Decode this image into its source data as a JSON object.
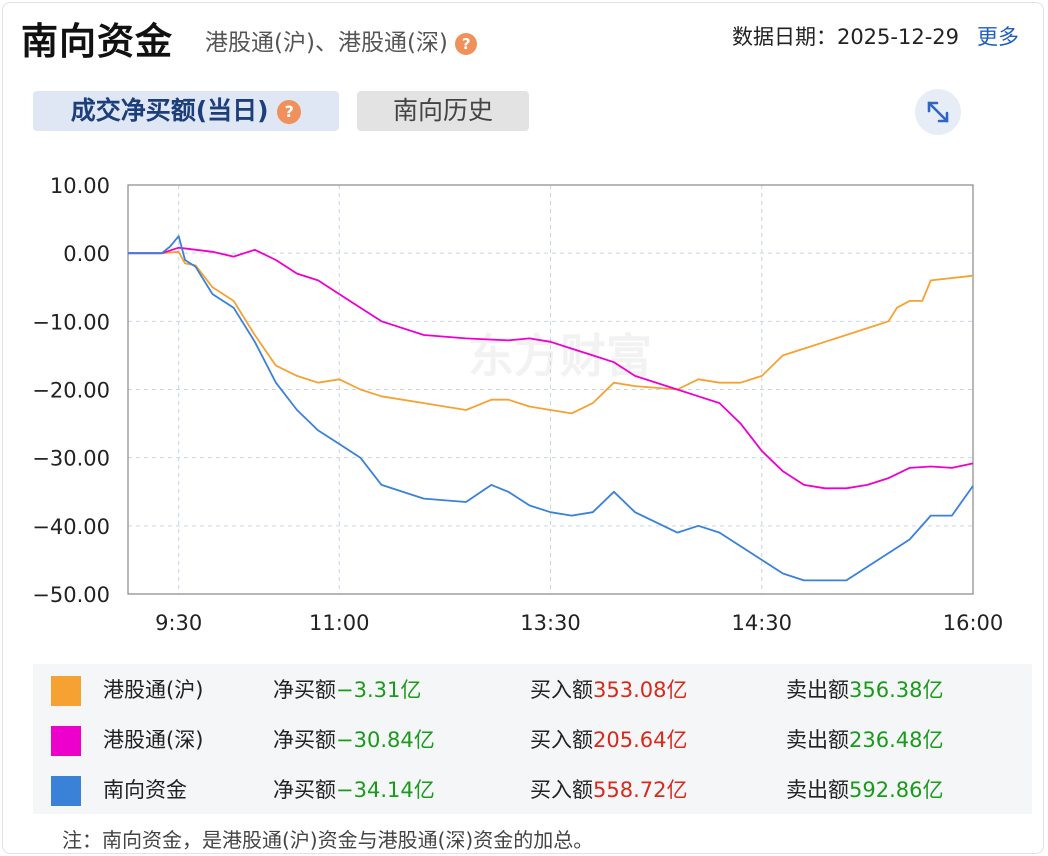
{
  "header": {
    "title": "南向资金",
    "subtitle": "港股通(沪)、港股通(深)",
    "date_label": "数据日期：2025-12-29",
    "more_label": "更多"
  },
  "tabs": [
    {
      "label": "成交净买额(当日)",
      "active": true
    },
    {
      "label": "南向历史",
      "active": false
    }
  ],
  "icons": {
    "help": "question-icon",
    "expand": "expand-icon"
  },
  "watermark": "东方财富",
  "chart_data": {
    "type": "line",
    "ylim": [
      -50,
      10
    ],
    "yticks": [
      "10.00",
      "0.00",
      "−10.00",
      "−20.00",
      "−30.00",
      "−40.00",
      "−50.00"
    ],
    "ytick_values": [
      10,
      0,
      -10,
      -20,
      -30,
      -40,
      -50
    ],
    "xticks": [
      {
        "label": "9:30",
        "x": 0.12
      },
      {
        "label": "11:00",
        "x": 0.5
      },
      {
        "label": "13:30",
        "x": 1.0
      },
      {
        "label": "14:30",
        "x": 1.5
      },
      {
        "label": "16:00",
        "x": 2.0
      }
    ],
    "grid": true,
    "series": [
      {
        "name": "港股通(沪)",
        "color": "#f5a233",
        "points": [
          [
            0,
            0
          ],
          [
            0.08,
            0
          ],
          [
            0.12,
            0.2
          ],
          [
            0.135,
            -1.5
          ],
          [
            0.16,
            -1.8
          ],
          [
            0.2,
            -5
          ],
          [
            0.25,
            -7
          ],
          [
            0.3,
            -12
          ],
          [
            0.35,
            -16.5
          ],
          [
            0.4,
            -18
          ],
          [
            0.45,
            -19
          ],
          [
            0.5,
            -18.5
          ],
          [
            0.55,
            -20
          ],
          [
            0.6,
            -21
          ],
          [
            0.7,
            -22
          ],
          [
            0.8,
            -23
          ],
          [
            0.86,
            -21.5
          ],
          [
            0.9,
            -21.5
          ],
          [
            0.95,
            -22.5
          ],
          [
            1.0,
            -23
          ],
          [
            1.05,
            -23.5
          ],
          [
            1.1,
            -22
          ],
          [
            1.15,
            -19
          ],
          [
            1.2,
            -19.5
          ],
          [
            1.3,
            -20
          ],
          [
            1.35,
            -18.5
          ],
          [
            1.4,
            -19
          ],
          [
            1.45,
            -19
          ],
          [
            1.5,
            -18
          ],
          [
            1.55,
            -15
          ],
          [
            1.6,
            -14
          ],
          [
            1.65,
            -13
          ],
          [
            1.7,
            -12
          ],
          [
            1.75,
            -11
          ],
          [
            1.8,
            -10
          ],
          [
            1.82,
            -8
          ],
          [
            1.85,
            -7
          ],
          [
            1.88,
            -7
          ],
          [
            1.9,
            -4
          ],
          [
            2.0,
            -3.31
          ]
        ]
      },
      {
        "name": "港股通(深)",
        "color": "#ee00cc",
        "points": [
          [
            0,
            0
          ],
          [
            0.08,
            0
          ],
          [
            0.12,
            0.8
          ],
          [
            0.2,
            0.2
          ],
          [
            0.25,
            -0.5
          ],
          [
            0.3,
            0.5
          ],
          [
            0.35,
            -1
          ],
          [
            0.4,
            -3
          ],
          [
            0.45,
            -4
          ],
          [
            0.5,
            -6
          ],
          [
            0.55,
            -8
          ],
          [
            0.6,
            -10
          ],
          [
            0.7,
            -12
          ],
          [
            0.8,
            -12.5
          ],
          [
            0.9,
            -12.8
          ],
          [
            0.95,
            -12.5
          ],
          [
            1.0,
            -13
          ],
          [
            1.05,
            -14
          ],
          [
            1.1,
            -15
          ],
          [
            1.15,
            -16
          ],
          [
            1.2,
            -18
          ],
          [
            1.3,
            -20
          ],
          [
            1.35,
            -21
          ],
          [
            1.4,
            -22
          ],
          [
            1.45,
            -25
          ],
          [
            1.5,
            -29
          ],
          [
            1.55,
            -32
          ],
          [
            1.6,
            -34
          ],
          [
            1.65,
            -34.5
          ],
          [
            1.7,
            -34.5
          ],
          [
            1.75,
            -34
          ],
          [
            1.8,
            -33
          ],
          [
            1.85,
            -31.5
          ],
          [
            1.9,
            -31.3
          ],
          [
            1.95,
            -31.5
          ],
          [
            2.0,
            -30.84
          ]
        ]
      },
      {
        "name": "南向资金",
        "color": "#3a81d8",
        "points": [
          [
            0,
            0
          ],
          [
            0.08,
            0
          ],
          [
            0.1,
            1
          ],
          [
            0.12,
            2.5
          ],
          [
            0.135,
            -1
          ],
          [
            0.16,
            -2
          ],
          [
            0.2,
            -6
          ],
          [
            0.25,
            -8
          ],
          [
            0.3,
            -13
          ],
          [
            0.35,
            -19
          ],
          [
            0.4,
            -23
          ],
          [
            0.45,
            -26
          ],
          [
            0.5,
            -28
          ],
          [
            0.55,
            -30
          ],
          [
            0.6,
            -34
          ],
          [
            0.7,
            -36
          ],
          [
            0.8,
            -36.5
          ],
          [
            0.86,
            -34
          ],
          [
            0.9,
            -35
          ],
          [
            0.95,
            -37
          ],
          [
            1.0,
            -38
          ],
          [
            1.05,
            -38.5
          ],
          [
            1.1,
            -38
          ],
          [
            1.15,
            -35
          ],
          [
            1.2,
            -38
          ],
          [
            1.3,
            -41
          ],
          [
            1.35,
            -40
          ],
          [
            1.4,
            -41
          ],
          [
            1.5,
            -45
          ],
          [
            1.55,
            -47
          ],
          [
            1.6,
            -48
          ],
          [
            1.65,
            -48
          ],
          [
            1.7,
            -48
          ],
          [
            1.75,
            -46
          ],
          [
            1.8,
            -44
          ],
          [
            1.85,
            -42
          ],
          [
            1.9,
            -38.5
          ],
          [
            1.95,
            -38.5
          ],
          [
            2.0,
            -34.14
          ]
        ]
      }
    ]
  },
  "legend": {
    "rows": [
      {
        "name": "港股通(沪)",
        "color": "#f5a233",
        "net_label": "净买额",
        "net_value": "−3.31亿",
        "buy_label": "买入额",
        "buy_value": "353.08亿",
        "sell_label": "卖出额",
        "sell_value": "356.38亿"
      },
      {
        "name": "港股通(深)",
        "color": "#ee00cc",
        "net_label": "净买额",
        "net_value": "−30.84亿",
        "buy_label": "买入额",
        "buy_value": "205.64亿",
        "sell_label": "卖出额",
        "sell_value": "236.48亿"
      },
      {
        "name": "南向资金",
        "color": "#3a81d8",
        "net_label": "净买额",
        "net_value": "−34.14亿",
        "buy_label": "买入额",
        "buy_value": "558.72亿",
        "sell_label": "卖出额",
        "sell_value": "592.86亿"
      }
    ]
  },
  "footnote": "注：南向资金，是港股通(沪)资金与港股通(深)资金的加总。"
}
